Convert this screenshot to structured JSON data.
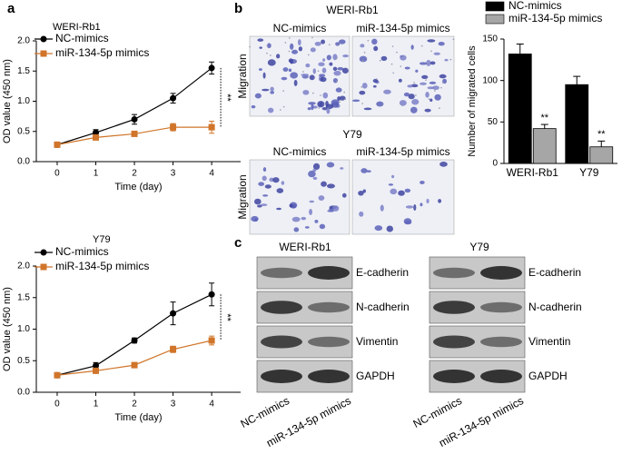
{
  "panel_labels": [
    "a",
    "b",
    "c"
  ],
  "chart_data": [
    {
      "type": "line",
      "title": "WERI-Rb1",
      "xlabel": "Time (day)",
      "ylabel": "OD value (450 nm)",
      "x": [
        0,
        1,
        2,
        3,
        4
      ],
      "xlim": [
        -0.54,
        4.75
      ],
      "xticks": [
        0,
        1,
        2,
        3,
        4
      ],
      "ylim": [
        0,
        2
      ],
      "yticks": [
        {
          "value": 0,
          "label": "0.0"
        },
        {
          "value": 0.5,
          "label": "0.5"
        },
        {
          "value": 1,
          "label": "1.0"
        },
        {
          "value": 1.5,
          "label": "1.5"
        },
        {
          "value": 2,
          "label": "2.0"
        }
      ],
      "legend": "upper left",
      "annotation": "**",
      "series": [
        {
          "name": "NC-mimics",
          "color": "#000000",
          "marker": "circle",
          "values": [
            0.28,
            0.48,
            0.7,
            1.05,
            1.55
          ],
          "errors": [
            0.03,
            0.05,
            0.08,
            0.08,
            0.1
          ]
        },
        {
          "name": "miR-134-5p mimics",
          "color": "#d0752a",
          "marker": "square",
          "values": [
            0.28,
            0.4,
            0.46,
            0.57,
            0.57
          ],
          "errors": [
            0.02,
            0.04,
            0.03,
            0.06,
            0.1
          ]
        }
      ]
    },
    {
      "type": "line",
      "title": "Y79",
      "xlabel": "Time (day)",
      "ylabel": "OD value (450 nm)",
      "x": [
        0,
        1,
        2,
        3,
        4
      ],
      "xlim": [
        -0.54,
        4.75
      ],
      "xticks": [
        0,
        1,
        2,
        3,
        4
      ],
      "ylim": [
        0,
        2
      ],
      "yticks": [
        {
          "value": 0,
          "label": "0.0"
        },
        {
          "value": 0.5,
          "label": "0.5"
        },
        {
          "value": 1,
          "label": "1.0"
        },
        {
          "value": 1.5,
          "label": "1.5"
        },
        {
          "value": 2,
          "label": "2.0"
        }
      ],
      "legend": "upper left",
      "annotation": "**",
      "series": [
        {
          "name": "NC-mimics",
          "color": "#000000",
          "marker": "circle",
          "values": [
            0.27,
            0.42,
            0.82,
            1.25,
            1.55
          ],
          "errors": [
            0.02,
            0.05,
            0.04,
            0.18,
            0.18
          ]
        },
        {
          "name": "miR-134-5p mimics",
          "color": "#d0752a",
          "marker": "square",
          "values": [
            0.27,
            0.34,
            0.43,
            0.68,
            0.82
          ],
          "errors": [
            0.02,
            0.03,
            0.04,
            0.05,
            0.07
          ]
        }
      ]
    },
    {
      "type": "bar",
      "ylabel": "Number of migrated cells",
      "categories": [
        "WERI-Rb1",
        "Y79"
      ],
      "ylim": [
        0,
        150
      ],
      "yticks": [
        0,
        50,
        100,
        150
      ],
      "legend": "top",
      "annotation": "**",
      "series": [
        {
          "name": "NC-mimics",
          "color": "#000000",
          "values": [
            132,
            95
          ],
          "errors": [
            12,
            10
          ]
        },
        {
          "name": "miR-134-5p mimics",
          "color": "#a6a6a6",
          "values": [
            42,
            20
          ],
          "errors": [
            5,
            7
          ]
        }
      ]
    }
  ],
  "migration": {
    "row_label": "Migration",
    "groups": [
      {
        "title": "WERI-Rb1",
        "columns": [
          "NC-mimics",
          "miR-134-5p mimics"
        ]
      },
      {
        "title": "Y79",
        "columns": [
          "NC-mimics",
          "miR-134-5p mimics"
        ]
      }
    ]
  },
  "western_blot": {
    "groups": [
      {
        "title": "WERI-Rb1",
        "proteins": [
          "E-cadherin",
          "N-cadherin",
          "Vimentin",
          "GAPDH"
        ],
        "lanes": [
          "NC-mimics",
          "miR-134-5p mimics"
        ]
      },
      {
        "title": "Y79",
        "proteins": [
          "E-cadherin",
          "N-cadherin",
          "Vimentin",
          "GAPDH"
        ],
        "lanes": [
          "NC-mimics",
          "miR-134-5p mimics"
        ]
      }
    ]
  }
}
